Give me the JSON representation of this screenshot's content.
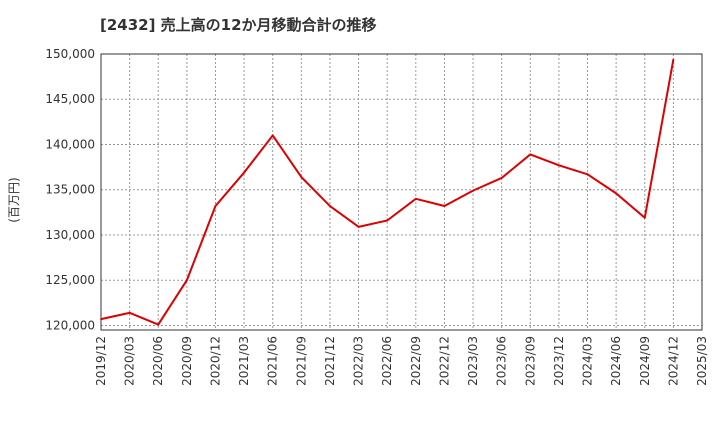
{
  "chart_data": {
    "type": "line",
    "title": "[2432]  売上高の12か月移動合計の推移",
    "xlabel": "",
    "ylabel": "(百万円)",
    "ylim": [
      119500,
      150000
    ],
    "yticks": [
      120000,
      125000,
      130000,
      135000,
      140000,
      145000,
      150000
    ],
    "ytick_labels": [
      "120,000",
      "125,000",
      "130,000",
      "135,000",
      "140,000",
      "145,000",
      "150,000"
    ],
    "categories": [
      "2019/12",
      "2020/03",
      "2020/06",
      "2020/09",
      "2020/12",
      "2021/03",
      "2021/06",
      "2021/09",
      "2021/12",
      "2022/03",
      "2022/06",
      "2022/09",
      "2022/12",
      "2023/03",
      "2023/06",
      "2023/09",
      "2023/12",
      "2024/03",
      "2024/06",
      "2024/09",
      "2024/12",
      "2025/03"
    ],
    "grid": true,
    "series": [
      {
        "name": "売上高の12か月移動合計",
        "color": "#dd0000",
        "values": [
          120700,
          121400,
          120100,
          125000,
          133200,
          136900,
          141000,
          136400,
          133200,
          130900,
          131600,
          134000,
          133200,
          134900,
          136300,
          138900,
          137700,
          136700,
          134600,
          131900,
          149400,
          null
        ]
      }
    ]
  }
}
